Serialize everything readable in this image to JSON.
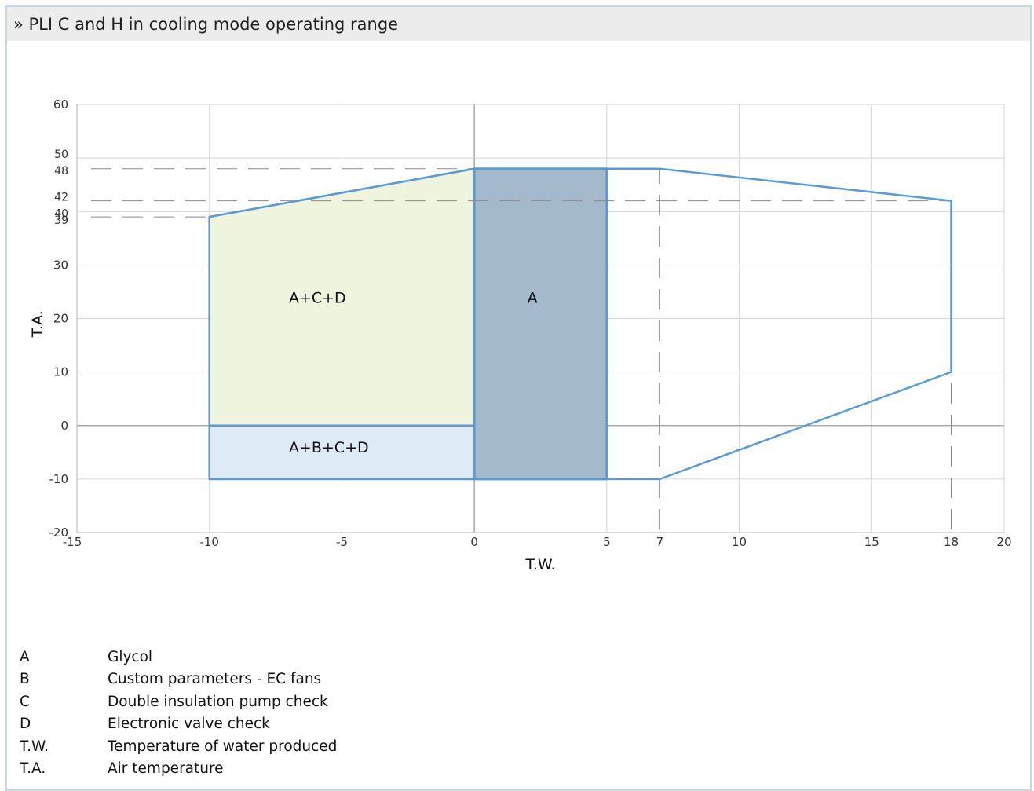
{
  "header": {
    "title": "» PLI C and H in cooling mode operating range"
  },
  "colors": {
    "frame": "#c9d6e6",
    "header_bg": "#ececec",
    "outline": "#5b9bd5",
    "region_acd": "#eef4dd",
    "region_abcd": "#deeaf6",
    "region_a": "#a4b9cb",
    "grid": "#d4d4d4",
    "axis_zero": "#9a9a9a",
    "dash": "#8a8a8a"
  },
  "chart_data": {
    "type": "area",
    "title": "",
    "xlabel": "T.W.",
    "ylabel": "T.A.",
    "xlim": [
      -15,
      20
    ],
    "ylim": [
      -20,
      60
    ],
    "x_ticks": [
      -15,
      -10,
      -5,
      0,
      5,
      7,
      10,
      15,
      18,
      20
    ],
    "y_ticks": [
      -20,
      -10,
      0,
      10,
      20,
      30,
      39,
      40,
      42,
      48,
      50,
      60
    ],
    "x_grid": [
      -15,
      -10,
      -5,
      0,
      5,
      10,
      15,
      20
    ],
    "y_grid": [
      -20,
      -10,
      0,
      10,
      20,
      30,
      40,
      50,
      60
    ],
    "grid": true,
    "outline": [
      [
        -10,
        -10
      ],
      [
        -10,
        39
      ],
      [
        0,
        48
      ],
      [
        7,
        48
      ],
      [
        18,
        42
      ],
      [
        18,
        10
      ],
      [
        7,
        -10
      ],
      [
        -10,
        -10
      ]
    ],
    "regions": [
      {
        "label": "A+C+D",
        "polygon": [
          [
            -10,
            0
          ],
          [
            -10,
            39
          ],
          [
            0,
            48
          ],
          [
            0,
            0
          ]
        ],
        "label_at": [
          -7,
          24
        ]
      },
      {
        "label": "A+B+C+D",
        "polygon": [
          [
            -10,
            -10
          ],
          [
            -10,
            0
          ],
          [
            0,
            0
          ],
          [
            0,
            -10
          ]
        ],
        "label_at": [
          -7,
          -4
        ]
      },
      {
        "label": "A",
        "polygon": [
          [
            0,
            -10
          ],
          [
            0,
            48
          ],
          [
            5,
            48
          ],
          [
            5,
            -10
          ]
        ],
        "label_at": [
          2,
          24
        ]
      }
    ],
    "reference_lines": {
      "horizontal": [
        {
          "y": 48,
          "x_from": -15,
          "x_to": 0
        },
        {
          "y": 42,
          "x_from": -15,
          "x_to": 18
        },
        {
          "y": 39,
          "x_from": -15,
          "x_to": -10
        }
      ],
      "vertical": [
        {
          "x": 7,
          "y_from": -20,
          "y_to": 48
        },
        {
          "x": 18,
          "y_from": -20,
          "y_to": 42
        }
      ]
    }
  },
  "legend": [
    {
      "key": "A",
      "text": "Glycol"
    },
    {
      "key": "B",
      "text": "Custom parameters - EC fans"
    },
    {
      "key": "C",
      "text": "Double insulation pump check"
    },
    {
      "key": "D",
      "text": "Electronic valve check"
    },
    {
      "key": "T.W.",
      "text": "Temperature of water produced"
    },
    {
      "key": "T.A.",
      "text": "Air temperature"
    }
  ]
}
